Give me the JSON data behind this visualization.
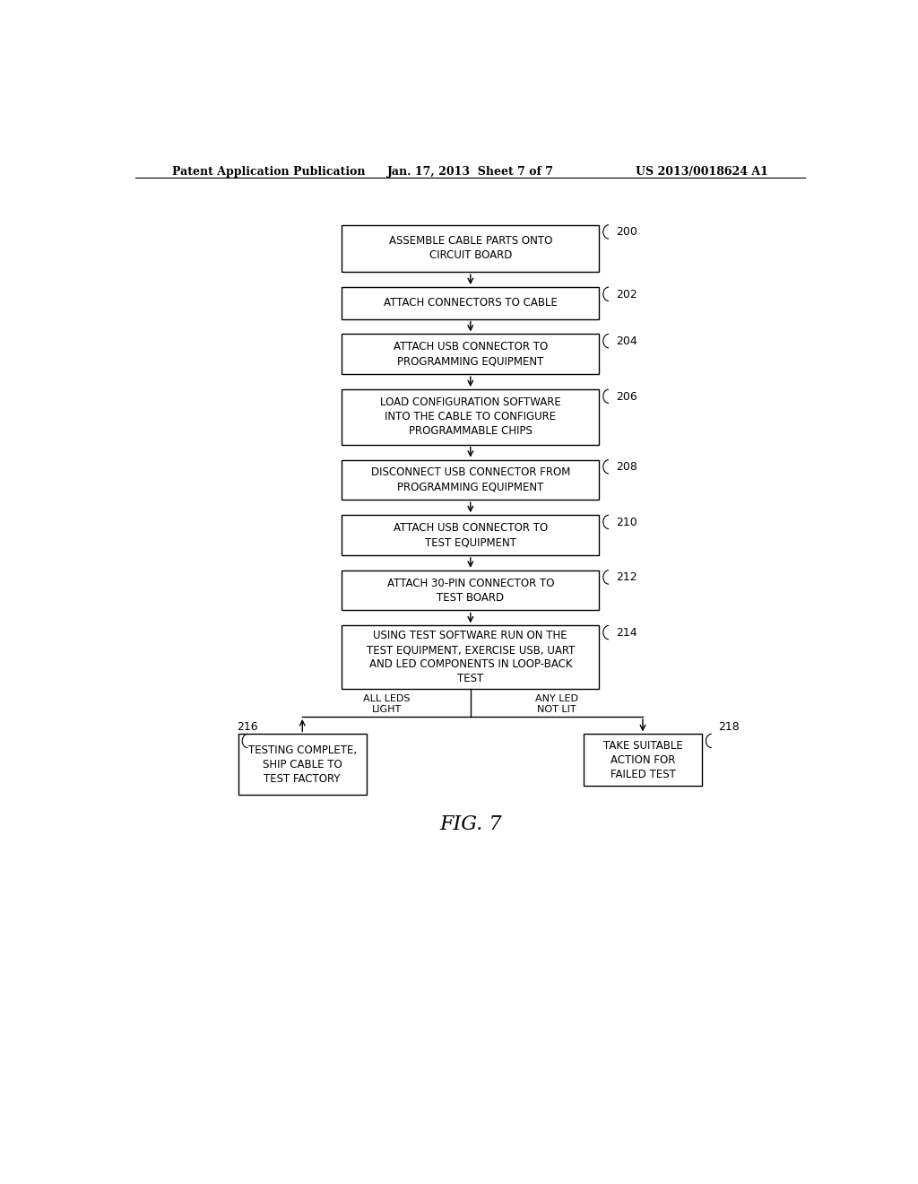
{
  "bg_color": "#ffffff",
  "header_left": "Patent Application Publication",
  "header_mid": "Jan. 17, 2013  Sheet 7 of 7",
  "header_right": "US 2013/0018624 A1",
  "fig_label": "FIG. 7",
  "main_boxes": [
    {
      "text": "ASSEMBLE CABLE PARTS ONTO\nCIRCUIT BOARD",
      "label": "200"
    },
    {
      "text": "ATTACH CONNECTORS TO CABLE",
      "label": "202"
    },
    {
      "text": "ATTACH USB CONNECTOR TO\nPROGRAMMING EQUIPMENT",
      "label": "204"
    },
    {
      "text": "LOAD CONFIGURATION SOFTWARE\nINTO THE CABLE TO CONFIGURE\nPROGRAMMABLE CHIPS",
      "label": "206"
    },
    {
      "text": "DISCONNECT USB CONNECTOR FROM\nPROGRAMMING EQUIPMENT",
      "label": "208"
    },
    {
      "text": "ATTACH USB CONNECTOR TO\nTEST EQUIPMENT",
      "label": "210"
    },
    {
      "text": "ATTACH 30-PIN CONNECTOR TO\nTEST BOARD",
      "label": "212"
    },
    {
      "text": "USING TEST SOFTWARE RUN ON THE\nTEST EQUIPMENT, EXERCISE USB, UART\nAND LED COMPONENTS IN LOOP-BACK\nTEST",
      "label": "214"
    }
  ],
  "branch_left": {
    "text": "TESTING COMPLETE,\nSHIP CABLE TO\nTEST FACTORY",
    "label": "216"
  },
  "branch_right": {
    "text": "TAKE SUITABLE\nACTION FOR\nFAILED TEST",
    "label": "218"
  },
  "arrow_left_label": "ALL LEDS\nLIGHT",
  "arrow_right_label": "ANY LED\nNOT LIT",
  "box_color": "#ffffff",
  "box_edge_color": "#000000",
  "text_color": "#000000",
  "line_color": "#000000",
  "font_size_box": 8.5,
  "font_size_header": 9,
  "font_size_label": 9,
  "font_size_arrow_label": 8,
  "font_size_fig": 14
}
